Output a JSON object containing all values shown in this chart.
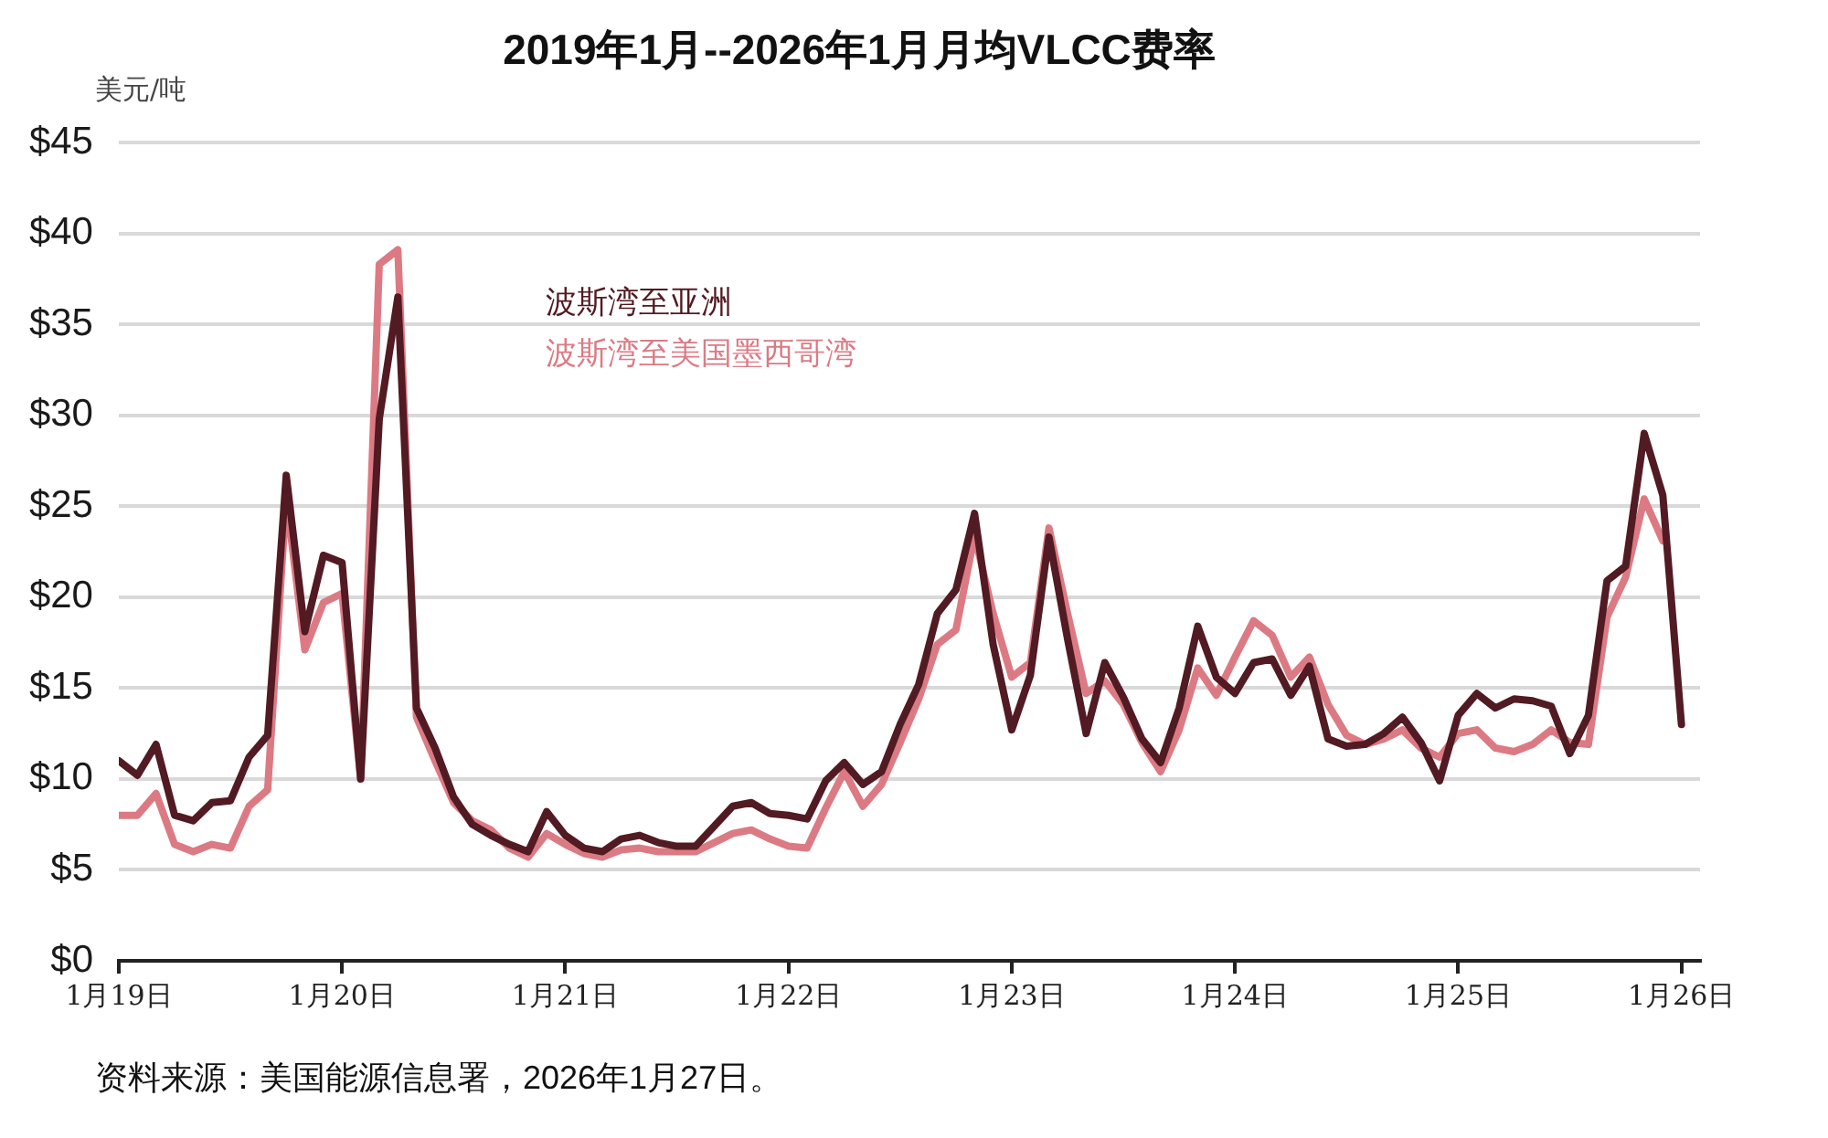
{
  "chart_data": {
    "type": "line",
    "title": "2019年1月--2026年1月月均VLCC费率",
    "ylabel": "美元/吨",
    "annotations": [
      "资料来源：美国能源信息署，2026年1月27日。"
    ],
    "x": [
      "2019-01",
      "2019-02",
      "2019-03",
      "2019-04",
      "2019-05",
      "2019-06",
      "2019-07",
      "2019-08",
      "2019-09",
      "2019-10",
      "2019-11",
      "2019-12",
      "2020-01",
      "2020-02",
      "2020-03",
      "2020-04",
      "2020-05",
      "2020-06",
      "2020-07",
      "2020-08",
      "2020-09",
      "2020-10",
      "2020-11",
      "2020-12",
      "2021-01",
      "2021-02",
      "2021-03",
      "2021-04",
      "2021-05",
      "2021-06",
      "2021-07",
      "2021-08",
      "2021-09",
      "2021-10",
      "2021-11",
      "2021-12",
      "2022-01",
      "2022-02",
      "2022-03",
      "2022-04",
      "2022-05",
      "2022-06",
      "2022-07",
      "2022-08",
      "2022-09",
      "2022-10",
      "2022-11",
      "2022-12",
      "2023-01",
      "2023-02",
      "2023-03",
      "2023-04",
      "2023-05",
      "2023-06",
      "2023-07",
      "2023-08",
      "2023-09",
      "2023-10",
      "2023-11",
      "2023-12",
      "2024-01",
      "2024-02",
      "2024-03",
      "2024-04",
      "2024-05",
      "2024-06",
      "2024-07",
      "2024-08",
      "2024-09",
      "2024-10",
      "2024-11",
      "2024-12",
      "2025-01",
      "2025-02",
      "2025-03",
      "2025-04",
      "2025-05",
      "2025-06",
      "2025-07",
      "2025-08",
      "2025-09",
      "2025-10",
      "2025-11",
      "2025-12",
      "2026-01"
    ],
    "xlim": [
      "2019-01",
      "2026-02"
    ],
    "xticks": [
      {
        "value": "2019-01",
        "label": "1月19日"
      },
      {
        "value": "2020-01",
        "label": "1月20日"
      },
      {
        "value": "2021-01",
        "label": "1月21日"
      },
      {
        "value": "2022-01",
        "label": "1月22日"
      },
      {
        "value": "2023-01",
        "label": "1月23日"
      },
      {
        "value": "2024-01",
        "label": "1月24日"
      },
      {
        "value": "2025-01",
        "label": "1月25日"
      },
      {
        "value": "2026-01",
        "label": "1月26日"
      }
    ],
    "ylim": [
      0,
      45
    ],
    "yticks": [
      {
        "value": 0,
        "label": "$0"
      },
      {
        "value": 5,
        "label": "$5"
      },
      {
        "value": 10,
        "label": "$10"
      },
      {
        "value": 15,
        "label": "$15"
      },
      {
        "value": 20,
        "label": "$20"
      },
      {
        "value": 25,
        "label": "$25"
      },
      {
        "value": 30,
        "label": "$30"
      },
      {
        "value": 35,
        "label": "$35"
      },
      {
        "value": 40,
        "label": "$40"
      },
      {
        "value": 45,
        "label": "$45"
      }
    ],
    "grid": "y",
    "legend": "top left",
    "series": [
      {
        "name": "波斯湾至亚洲",
        "color": "#521a22",
        "values": [
          11.0,
          10.2,
          11.9,
          8.0,
          7.7,
          8.7,
          8.8,
          11.2,
          12.4,
          26.7,
          18.1,
          22.3,
          21.9,
          10.0,
          29.8,
          36.5,
          13.9,
          11.7,
          9.0,
          7.5,
          6.9,
          6.4,
          6.0,
          8.2,
          6.9,
          6.2,
          6.0,
          6.7,
          6.9,
          6.5,
          6.3,
          6.3,
          7.4,
          8.5,
          8.7,
          8.1,
          8.0,
          7.8,
          9.9,
          10.9,
          9.7,
          10.4,
          13.0,
          15.2,
          19.1,
          20.4,
          24.6,
          17.4,
          12.7,
          15.7,
          23.3,
          17.7,
          12.5,
          16.4,
          14.5,
          12.2,
          10.9,
          13.9,
          18.4,
          15.6,
          14.7,
          16.4,
          16.6,
          14.6,
          16.2,
          12.2,
          11.8,
          11.9,
          12.5,
          13.4,
          12.0,
          9.9,
          13.5,
          14.7,
          13.9,
          14.4,
          14.3,
          14.0,
          11.4,
          13.5,
          20.9,
          21.7,
          29.0,
          25.6,
          13.0
        ]
      },
      {
        "name": "波斯湾至美国墨西哥湾",
        "color": "#dc7a84",
        "values": [
          8.0,
          8.0,
          9.2,
          6.4,
          6.0,
          6.4,
          6.2,
          8.5,
          9.4,
          25.5,
          17.1,
          19.7,
          20.2,
          10.0,
          38.3,
          39.1,
          13.4,
          11.0,
          8.7,
          7.7,
          7.2,
          6.2,
          5.7,
          7.0,
          6.4,
          5.9,
          5.7,
          6.1,
          6.2,
          6.0,
          6.0,
          6.0,
          6.5,
          7.0,
          7.2,
          6.7,
          6.3,
          6.2,
          8.4,
          10.4,
          8.5,
          9.7,
          12.0,
          14.4,
          17.4,
          18.2,
          23.4,
          19.1,
          15.6,
          16.4,
          23.8,
          19.1,
          14.7,
          15.4,
          14.1,
          12.0,
          10.4,
          12.7,
          16.1,
          14.6,
          16.7,
          18.7,
          17.9,
          15.6,
          16.7,
          14.1,
          12.4,
          11.9,
          12.2,
          12.7,
          11.7,
          11.2,
          12.5,
          12.7,
          11.7,
          11.5,
          11.9,
          12.7,
          12.0,
          11.9,
          18.9,
          21.1,
          25.4,
          23.1,
          null
        ]
      }
    ]
  }
}
